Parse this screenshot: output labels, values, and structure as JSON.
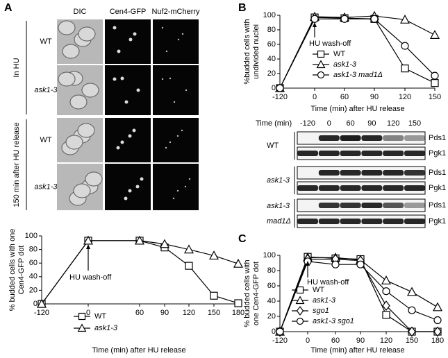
{
  "panel_labels": [
    "A",
    "B",
    "C"
  ],
  "micrographs": {
    "columns": [
      "DIC",
      "Cen4-GFP",
      "Nuf2-mCherry"
    ],
    "rows": [
      {
        "label": "WT",
        "italic": false
      },
      {
        "label": "ask1-3",
        "italic": true
      },
      {
        "label": "WT",
        "italic": false
      },
      {
        "label": "ask1-3",
        "italic": true
      }
    ],
    "groups": [
      "In HU",
      "150 min after HU release"
    ]
  },
  "blot": {
    "time_label": "Time (min)",
    "times": [
      "-120",
      "0",
      "60",
      "90",
      "120",
      "150"
    ],
    "groups": [
      {
        "label": [
          "WT"
        ],
        "italic": false,
        "bands": [
          "Pds1",
          "Pgk1"
        ]
      },
      {
        "label": [
          "ask1-3"
        ],
        "italic": true,
        "bands": [
          "Pds1",
          "Pgk1"
        ]
      },
      {
        "label": [
          "ask1-3",
          "mad1Δ"
        ],
        "italic": true,
        "bands": [
          "Pds1",
          "Pgk1"
        ]
      }
    ]
  },
  "chart_data": [
    {
      "type": "line",
      "ylabel": [
        "% budded cells with one",
        "Cen4-GFP dot"
      ],
      "xlabel": "Time (min) after HU release",
      "annotation": "HU wash-off",
      "categories": [
        "-120",
        "0",
        "60",
        "90",
        "120",
        "150",
        "180"
      ],
      "ylim": [
        0,
        100
      ],
      "yticks": [
        0,
        20,
        40,
        60,
        80,
        100
      ],
      "series": [
        {
          "name": "WT",
          "italic": false,
          "color": "#000000",
          "marker": "square",
          "values": [
            0,
            93,
            93,
            83,
            56,
            12,
            1
          ]
        },
        {
          "name": "ask1-3",
          "italic": true,
          "color": "#000000",
          "marker": "triangle",
          "values": [
            0,
            93,
            93,
            88,
            80,
            71,
            59
          ]
        }
      ]
    },
    {
      "type": "line",
      "ylabel": [
        "%budded cells with",
        "undivided nuclei"
      ],
      "xlabel": "Time (min) after HU release",
      "annotation": "HU wash-off",
      "categories": [
        "-120",
        "0",
        "60",
        "90",
        "120",
        "150"
      ],
      "ylim": [
        0,
        100
      ],
      "yticks": [
        0,
        20,
        40,
        60,
        80,
        100
      ],
      "series": [
        {
          "name": "WT",
          "italic": false,
          "color": "#000000",
          "marker": "square",
          "values": [
            0,
            97,
            96,
            95,
            27,
            7
          ]
        },
        {
          "name": "ask1-3",
          "italic": true,
          "color": "#000000",
          "marker": "triangle",
          "values": [
            0,
            98,
            97,
            99,
            94,
            73
          ]
        },
        {
          "name": "ask1-3 mad1Δ",
          "italic": true,
          "color": "#000000",
          "marker": "circle",
          "values": [
            0,
            95,
            95,
            95,
            58,
            17
          ]
        }
      ]
    },
    {
      "type": "line",
      "ylabel": [
        "% budded cells with",
        "one Cen4-GFP dot"
      ],
      "xlabel": "Time (min) after HU release",
      "annotation": "HU wash-off",
      "categories": [
        "-120",
        "0",
        "60",
        "90",
        "120",
        "150",
        "180"
      ],
      "ylim": [
        0,
        100
      ],
      "yticks": [
        0,
        20,
        40,
        60,
        80,
        100
      ],
      "series": [
        {
          "name": "WT",
          "italic": false,
          "color": "#000000",
          "marker": "square",
          "values": [
            0,
            98,
            96,
            95,
            22,
            0,
            0
          ]
        },
        {
          "name": "ask1-3",
          "italic": true,
          "color": "#000000",
          "marker": "triangle",
          "values": [
            0,
            97,
            97,
            94,
            67,
            52,
            32
          ]
        },
        {
          "name": "sgo1",
          "italic": true,
          "color": "#000000",
          "marker": "diamond",
          "values": [
            0,
            95,
            95,
            93,
            34,
            0,
            0
          ]
        },
        {
          "name": "ask1-3 sgo1",
          "italic": true,
          "color": "#000000",
          "marker": "circle",
          "values": [
            0,
            92,
            88,
            88,
            53,
            28,
            15
          ]
        }
      ]
    }
  ]
}
